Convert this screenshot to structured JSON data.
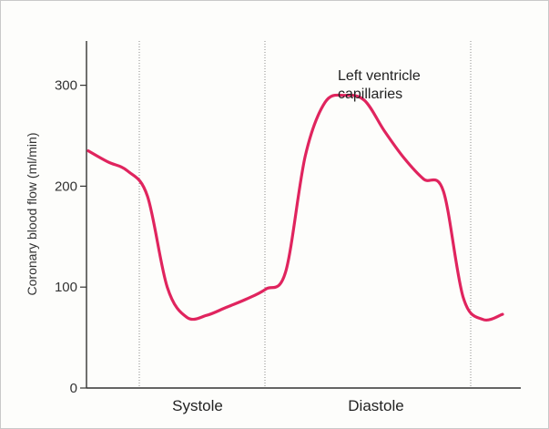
{
  "chart_data": {
    "type": "line",
    "ylabel": "Coronary blood flow (ml/min)",
    "xlabel": "",
    "ylim": [
      0,
      340
    ],
    "y_ticks": [
      0,
      100,
      200,
      300
    ],
    "grid": false,
    "phase_labels": [
      "Systole",
      "Diastole"
    ],
    "annotation": {
      "line1": "Left ventricle",
      "line2": "capillaries"
    },
    "series": [
      {
        "color": "#e0245e",
        "values": [
          235,
          224,
          215,
          190,
          100,
          70,
          72,
          80,
          88,
          98,
          115,
          230,
          283,
          290,
          285,
          255,
          228,
          207,
          195,
          90,
          68,
          73
        ]
      }
    ]
  }
}
